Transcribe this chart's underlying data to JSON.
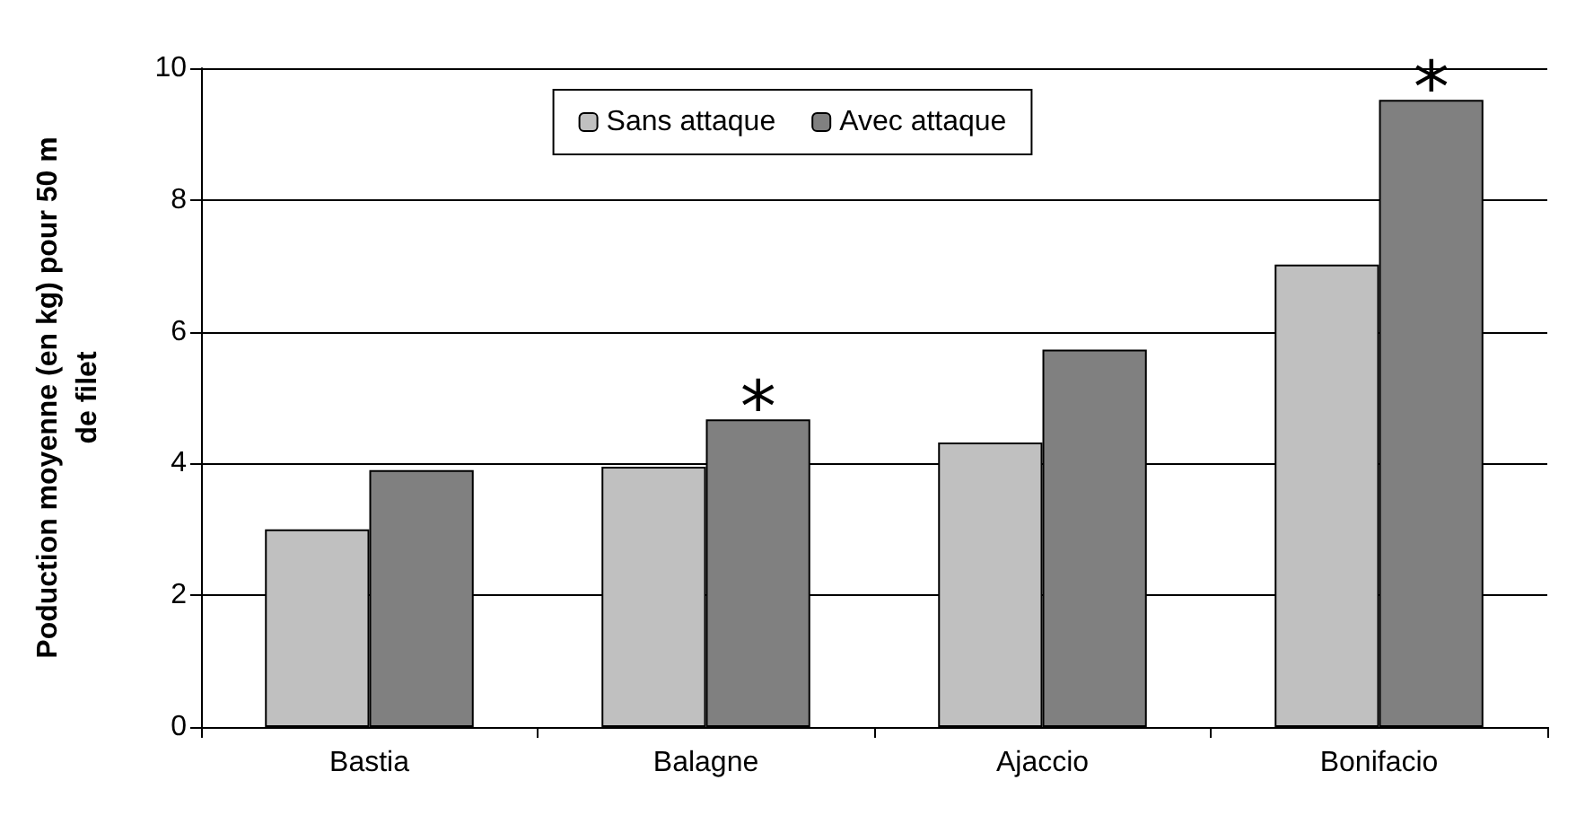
{
  "chart_data": {
    "type": "bar",
    "ylabel": "Poduction moyenne (en kg) pour 50 m\nde filet",
    "categories": [
      "Bastia",
      "Balagne",
      "Ajaccio",
      "Bonifacio"
    ],
    "series": [
      {
        "name": "Sans attaque",
        "color": "#c0c0c0",
        "values": [
          3.0,
          3.95,
          4.32,
          7.02
        ]
      },
      {
        "name": "Avec attaque",
        "color": "#808080",
        "values": [
          3.9,
          4.67,
          5.73,
          9.52
        ]
      }
    ],
    "ylim": [
      0,
      10
    ],
    "yticks": [
      0,
      2,
      4,
      6,
      8,
      10
    ],
    "grid": "y",
    "legend": "top",
    "annotations": [
      {
        "text": "*",
        "x": "Balagne",
        "y": 4.67
      },
      {
        "text": "*",
        "x": "Bonifacio",
        "y": 9.52
      }
    ]
  }
}
